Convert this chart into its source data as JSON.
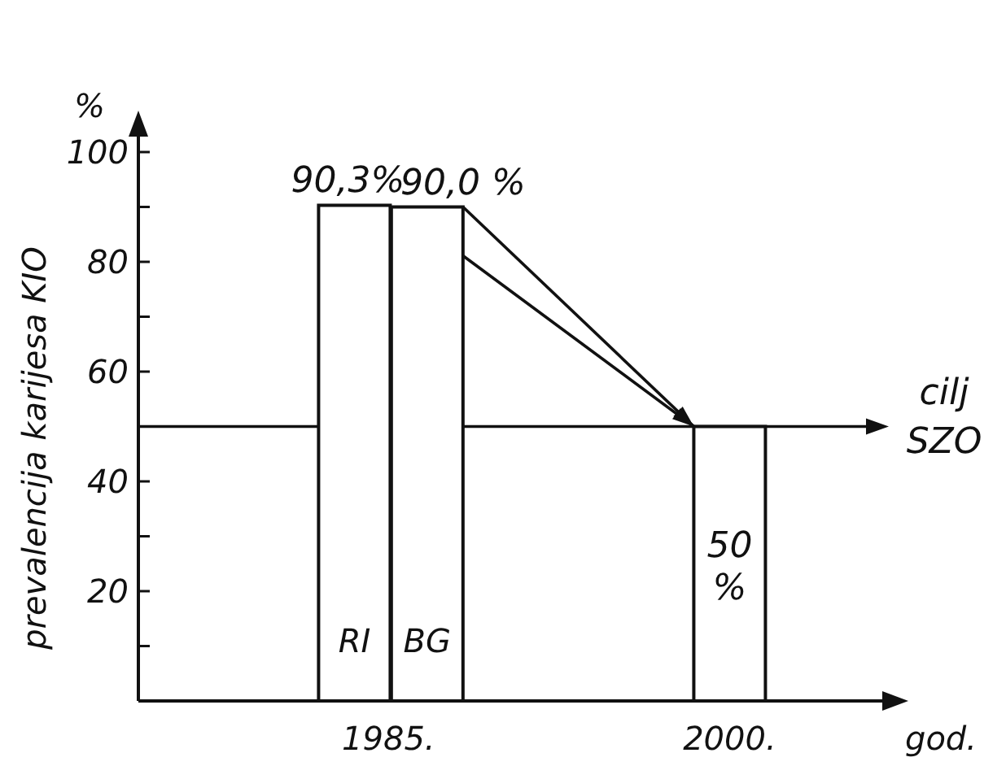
{
  "chart_data": {
    "type": "bar",
    "xlabel": "god.",
    "ylabel": "prevalencija karijesa KIO",
    "xlim": [
      1974,
      2007
    ],
    "xticks": [
      {
        "value": 1985,
        "label": "1985."
      },
      {
        "value": 2000,
        "label": "2000."
      }
    ],
    "ylim": [
      0,
      104
    ],
    "yticks": [
      {
        "value": 10,
        "label": null
      },
      20,
      {
        "value": 30,
        "label": null
      },
      40,
      {
        "value": 50,
        "label": null
      },
      60,
      {
        "value": 70,
        "label": null
      },
      80,
      {
        "value": 90,
        "label": null
      },
      100
    ],
    "grid": false,
    "series": [
      {
        "name": "RI",
        "color": "#ffffff",
        "x": [
          1983.5
        ],
        "values": [
          90.3
        ],
        "value_labels": [
          "90,3%"
        ]
      },
      {
        "name": "BG",
        "color": "#ffffff",
        "x": [
          1986.7
        ],
        "values": [
          90.0
        ],
        "value_labels": [
          "90,0 %"
        ]
      },
      {
        "color": "#ffffff",
        "x": [
          2000
        ],
        "values": [
          50
        ],
        "value_labels": [
          "50 %"
        ]
      }
    ],
    "ref_lines": [
      {
        "axis": "y",
        "value": 50,
        "label": "cilj SZO"
      }
    ],
    "annotations": [
      "%"
    ]
  }
}
